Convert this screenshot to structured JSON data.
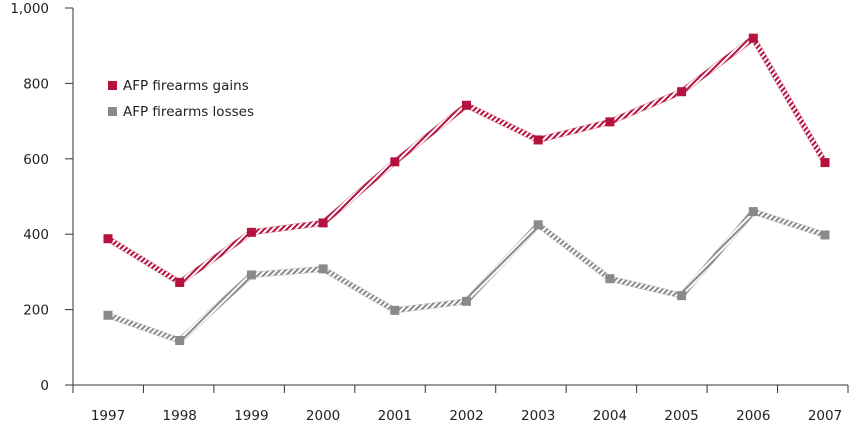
{
  "chart_data": {
    "type": "line",
    "title": "",
    "xlabel": "",
    "ylabel": "",
    "x": [
      "1997",
      "1998",
      "1999",
      "2000",
      "2001",
      "2002",
      "2003",
      "2004",
      "2005",
      "2006",
      "2007"
    ],
    "ylim": [
      0,
      1000
    ],
    "yticks": [
      0,
      200,
      400,
      600,
      800,
      1000
    ],
    "ytick_labels": [
      "0",
      "200",
      "400",
      "600",
      "800",
      "1,000"
    ],
    "grid": false,
    "legend_position": "upper-left",
    "series": [
      {
        "name": "AFP firearms gains",
        "color": "#b5123e",
        "values": [
          388,
          272,
          405,
          430,
          592,
          742,
          650,
          698,
          778,
          920,
          590
        ]
      },
      {
        "name": "AFP firearms losses",
        "color": "#8a8a8a",
        "values": [
          185,
          118,
          292,
          308,
          198,
          222,
          425,
          282,
          237,
          460,
          398
        ]
      }
    ]
  }
}
